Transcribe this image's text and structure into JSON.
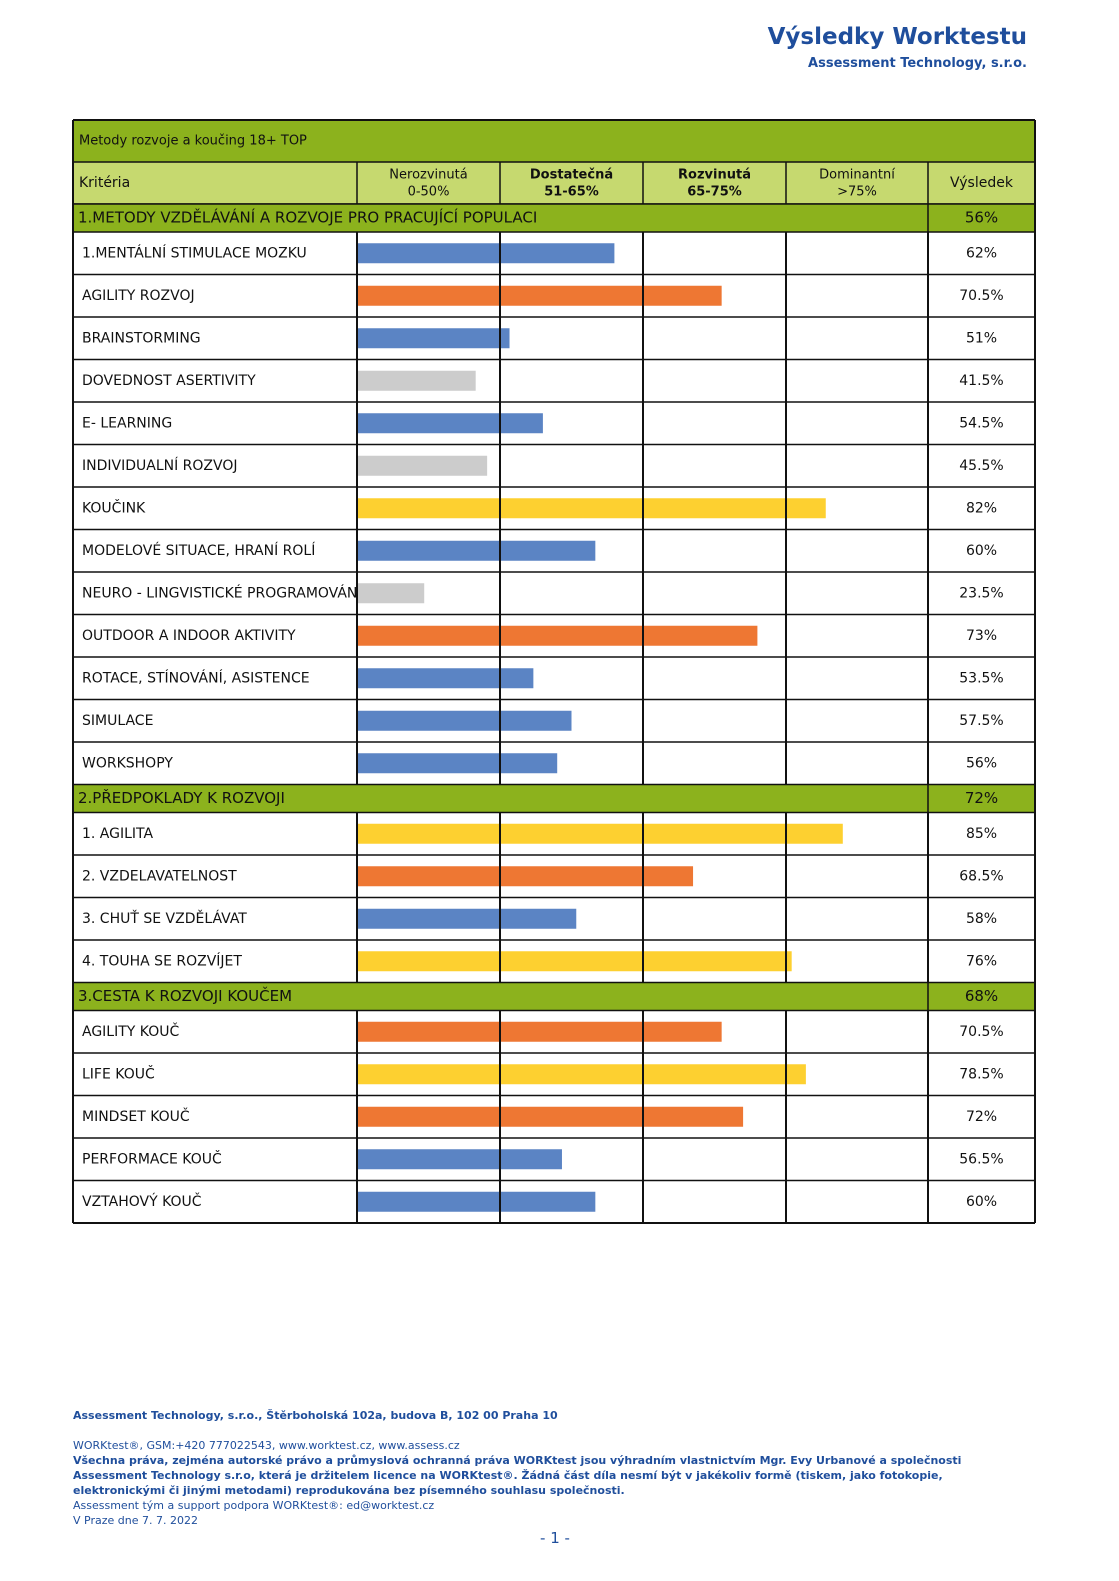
{
  "header": {
    "title": "Výsledky Worktestu",
    "subtitle": "Assessment Technology, s.r.o."
  },
  "table": {
    "title": "Metody rozvoje a koučing 18+ TOP",
    "criteria_label": "Kritéria",
    "result_label": "Výsledek",
    "bands": [
      {
        "name": "Nerozvinutá",
        "range": "0-50%"
      },
      {
        "name": "Dostatečná",
        "range": "51-65%"
      },
      {
        "name": "Rozvinutá",
        "range": "65-75%"
      },
      {
        "name": "Dominantní",
        "range": ">75%"
      }
    ],
    "scale": [
      0,
      50,
      65,
      75,
      100
    ],
    "bar_colors": [
      "#cccccc",
      "#5b84c4",
      "#ee7733",
      "#fdd030"
    ],
    "sections": [
      {
        "title": "1.METODY VZDĚLÁVÁNÍ A ROZVOJE PRO PRACUJÍCÍ POPULACI",
        "value": 56,
        "value_label": "56%",
        "items": [
          {
            "label": "1.MENTÁLNÍ STIMULACE MOZKU",
            "value": 62,
            "value_label": "62%"
          },
          {
            "label": "AGILITY ROZVOJ",
            "value": 70.5,
            "value_label": "70.5%"
          },
          {
            "label": "BRAINSTORMING",
            "value": 51,
            "value_label": "51%"
          },
          {
            "label": "DOVEDNOST ASERTIVITY",
            "value": 41.5,
            "value_label": "41.5%"
          },
          {
            "label": "E- LEARNING",
            "value": 54.5,
            "value_label": "54.5%"
          },
          {
            "label": "INDIVIDUALNÍ ROZVOJ",
            "value": 45.5,
            "value_label": "45.5%"
          },
          {
            "label": "KOUČINK",
            "value": 82,
            "value_label": "82%"
          },
          {
            "label": "MODELOVÉ SITUACE, HRANÍ ROLÍ",
            "value": 60,
            "value_label": "60%"
          },
          {
            "label": "NEURO - LINGVISTICKÉ PROGRAMOVÁNÍ",
            "value": 23.5,
            "value_label": "23.5%"
          },
          {
            "label": "OUTDOOR A INDOOR AKTIVITY",
            "value": 73,
            "value_label": "73%"
          },
          {
            "label": "ROTACE, STÍNOVÁNÍ, ASISTENCE",
            "value": 53.5,
            "value_label": "53.5%"
          },
          {
            "label": "SIMULACE",
            "value": 57.5,
            "value_label": "57.5%"
          },
          {
            "label": "WORKSHOPY",
            "value": 56,
            "value_label": "56%"
          }
        ]
      },
      {
        "title": "2.PŘEDPOKLADY K ROZVOJI",
        "value": 72,
        "value_label": "72%",
        "items": [
          {
            "label": "1. AGILITA",
            "value": 85,
            "value_label": "85%"
          },
          {
            "label": "2. VZDELAVATELNOST",
            "value": 68.5,
            "value_label": "68.5%"
          },
          {
            "label": "3. CHUŤ SE VZDĚLÁVAT",
            "value": 58,
            "value_label": "58%"
          },
          {
            "label": "4. TOUHA SE ROZVÍJET",
            "value": 76,
            "value_label": "76%"
          }
        ]
      },
      {
        "title": "3.CESTA K ROZVOJI KOUČEM",
        "value": 68,
        "value_label": "68%",
        "items": [
          {
            "label": "AGILITY KOUČ",
            "value": 70.5,
            "value_label": "70.5%"
          },
          {
            "label": "LIFE KOUČ",
            "value": 78.5,
            "value_label": "78.5%"
          },
          {
            "label": "MINDSET KOUČ",
            "value": 72,
            "value_label": "72%"
          },
          {
            "label": "PERFORMACE KOUČ",
            "value": 56.5,
            "value_label": "56.5%"
          },
          {
            "label": "VZTAHOVÝ KOUČ",
            "value": 60,
            "value_label": "60%"
          }
        ]
      }
    ]
  },
  "footer": {
    "address": "Assessment Technology, s.r.o., Štěrboholská 102a, budova B, 102 00 Praha 10",
    "contact": "WORKtest®, GSM:+420 777022543, www.worktest.cz, www.assess.cz",
    "rights": "Všechna práva, zejména autorské právo a průmyslová ochranná práva WORKtest jsou výhradním vlastnictvím Mgr. Evy Urbanové a společnosti Assessment Technology s.r.o, která je držitelem licence na WORKtest®. Žádná část díla nesmí být v jakékoliv formě (tiskem, jako fotokopie, elektronickými či jinými metodami) reprodukována bez písemného souhlasu společnosti.",
    "support": "Assessment tým a support podpora WORKtest®: ed@worktest.cz",
    "date": "V Praze dne 7. 7. 2022",
    "page": "- 1 -"
  }
}
